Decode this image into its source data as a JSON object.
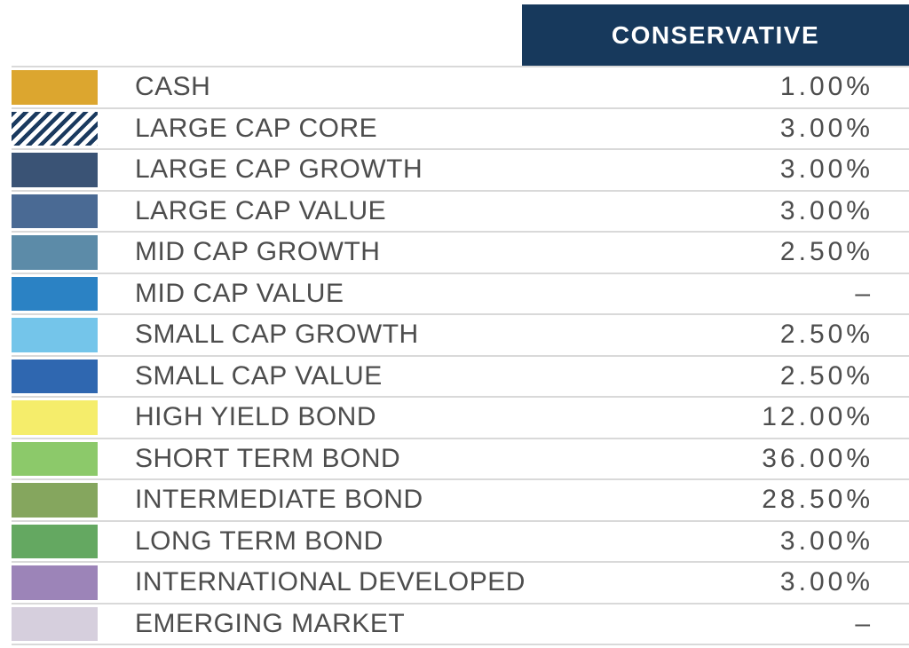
{
  "header": {
    "column_label": "CONSERVATIVE",
    "background": "#17395C",
    "text_color": "#FFFFFF"
  },
  "table": {
    "rows": [
      {
        "label": "CASH",
        "value": "1.00%",
        "color": "#DCA62F",
        "pattern": "solid"
      },
      {
        "label": "LARGE CAP CORE",
        "value": "3.00%",
        "color": "#1A3A5F",
        "pattern": "diagonal-stripes"
      },
      {
        "label": "LARGE CAP GROWTH",
        "value": "3.00%",
        "color": "#3A5375",
        "pattern": "solid"
      },
      {
        "label": "LARGE CAP VALUE",
        "value": "3.00%",
        "color": "#4A6A94",
        "pattern": "solid"
      },
      {
        "label": "MID CAP GROWTH",
        "value": "2.50%",
        "color": "#5C8BA8",
        "pattern": "solid"
      },
      {
        "label": "MID CAP VALUE",
        "value": "–",
        "color": "#2B82C4",
        "pattern": "solid"
      },
      {
        "label": "SMALL CAP GROWTH",
        "value": "2.50%",
        "color": "#74C5EA",
        "pattern": "solid"
      },
      {
        "label": "SMALL CAP VALUE",
        "value": "2.50%",
        "color": "#2F67B0",
        "pattern": "solid"
      },
      {
        "label": "HIGH YIELD BOND",
        "value": "12.00%",
        "color": "#F5ED6B",
        "pattern": "solid"
      },
      {
        "label": "SHORT TERM BOND",
        "value": "36.00%",
        "color": "#8CC96A",
        "pattern": "solid"
      },
      {
        "label": "INTERMEDIATE BOND",
        "value": "28.50%",
        "color": "#85A65E",
        "pattern": "solid"
      },
      {
        "label": "LONG TERM BOND",
        "value": "3.00%",
        "color": "#64A861",
        "pattern": "solid"
      },
      {
        "label": "INTERNATIONAL DEVELOPED",
        "value": "3.00%",
        "color": "#9C84B8",
        "pattern": "solid"
      },
      {
        "label": "EMERGING MARKET",
        "value": "–",
        "color": "#D6CFDD",
        "pattern": "solid"
      }
    ]
  },
  "chart_data": {
    "type": "table",
    "title": "CONSERVATIVE",
    "categories": [
      "CASH",
      "LARGE CAP CORE",
      "LARGE CAP GROWTH",
      "LARGE CAP VALUE",
      "MID CAP GROWTH",
      "MID CAP VALUE",
      "SMALL CAP GROWTH",
      "SMALL CAP VALUE",
      "HIGH YIELD BOND",
      "SHORT TERM BOND",
      "INTERMEDIATE BOND",
      "LONG TERM BOND",
      "INTERNATIONAL DEVELOPED",
      "EMERGING MARKET"
    ],
    "values": [
      1.0,
      3.0,
      3.0,
      3.0,
      2.5,
      null,
      2.5,
      2.5,
      12.0,
      36.0,
      28.5,
      3.0,
      3.0,
      null
    ],
    "value_unit": "percent",
    "missing_value_symbol": "–",
    "swatch_colors": [
      "#DCA62F",
      "#1A3A5F",
      "#3A5375",
      "#4A6A94",
      "#5C8BA8",
      "#2B82C4",
      "#74C5EA",
      "#2F67B0",
      "#F5ED6B",
      "#8CC96A",
      "#85A65E",
      "#64A861",
      "#9C84B8",
      "#D6CFDD"
    ]
  },
  "colors": {
    "separator": "#D9D9D9",
    "text": "#4D4D4D",
    "background": "#FFFFFF",
    "stripe_background": "#FFFFFF"
  }
}
